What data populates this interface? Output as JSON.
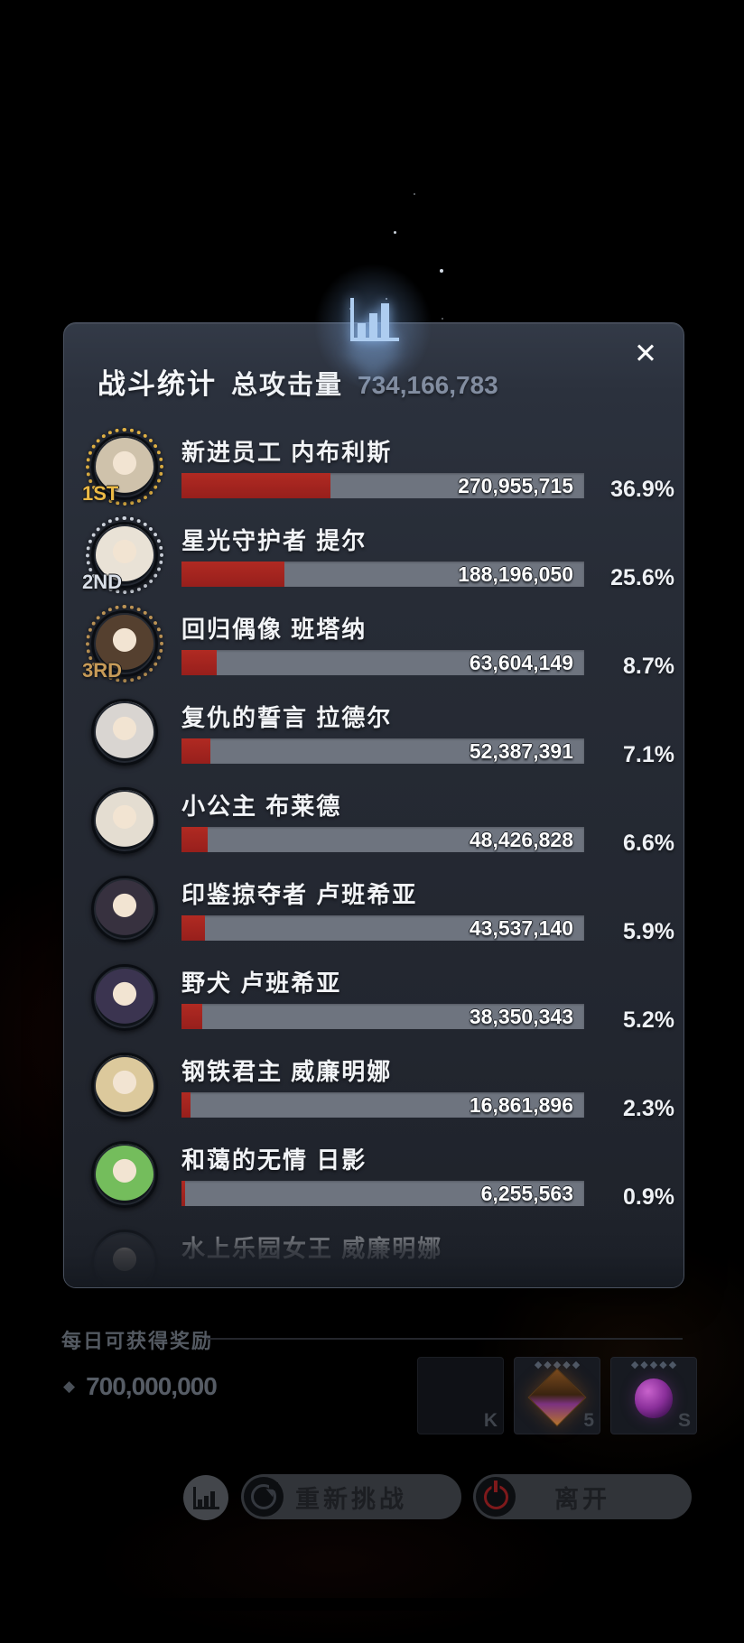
{
  "header": {
    "title": "战斗统计",
    "total_label": "总攻击量",
    "total_value": "734,166,783"
  },
  "close_icon": "✕",
  "icons": {
    "top_icon": "bar-chart-icon",
    "pip": "◆",
    "currency_diamond": "◆"
  },
  "colors": {
    "bar_fill": "#a5251f",
    "bar_track": "#6e747f",
    "accent_blue": "#aecdf0",
    "total_text": "#828da0",
    "rank_gold": "#ecba45",
    "rank_silver": "#d9dfe8",
    "rank_bronze": "#c79b58"
  },
  "panel": {
    "rows": [
      {
        "rank": "1ST",
        "rank_tier": "gold",
        "name": "新进员工 内布利斯",
        "value": "270,955,715",
        "percent": "36.9%",
        "percent_num": 36.9,
        "avatar_color": "#cfc2ab"
      },
      {
        "rank": "2ND",
        "rank_tier": "silver",
        "name": "星光守护者 提尔",
        "value": "188,196,050",
        "percent": "25.6%",
        "percent_num": 25.6,
        "avatar_color": "#e9e2d6"
      },
      {
        "rank": "3RD",
        "rank_tier": "bronze",
        "name": "回归偶像 班塔纳",
        "value": "63,604,149",
        "percent": "8.7%",
        "percent_num": 8.7,
        "avatar_color": "#55402f"
      },
      {
        "rank": null,
        "rank_tier": null,
        "name": "复仇的誓言 拉德尔",
        "value": "52,387,391",
        "percent": "7.1%",
        "percent_num": 7.1,
        "avatar_color": "#d9d5d1"
      },
      {
        "rank": null,
        "rank_tier": null,
        "name": "小公主 布莱德",
        "value": "48,426,828",
        "percent": "6.6%",
        "percent_num": 6.6,
        "avatar_color": "#e4ddd1"
      },
      {
        "rank": null,
        "rank_tier": null,
        "name": "印鉴掠夺者 卢班希亚",
        "value": "43,537,140",
        "percent": "5.9%",
        "percent_num": 5.9,
        "avatar_color": "#37313f"
      },
      {
        "rank": null,
        "rank_tier": null,
        "name": "野犬 卢班希亚",
        "value": "38,350,343",
        "percent": "5.2%",
        "percent_num": 5.2,
        "avatar_color": "#3b3450"
      },
      {
        "rank": null,
        "rank_tier": null,
        "name": "钢铁君主 威廉明娜",
        "value": "16,861,896",
        "percent": "2.3%",
        "percent_num": 2.3,
        "avatar_color": "#dcc99c"
      },
      {
        "rank": null,
        "rank_tier": null,
        "name": "和蔼的无情 日影",
        "value": "6,255,563",
        "percent": "0.9%",
        "percent_num": 0.9,
        "avatar_color": "#74bd5c"
      },
      {
        "rank": null,
        "rank_tier": null,
        "name": "水上乐园女王 威廉明娜",
        "value": null,
        "percent": null,
        "percent_num": null,
        "avatar_color": "#2e3138"
      }
    ]
  },
  "rewards": {
    "label": "每日可获得奖励",
    "amount": "700,000,000",
    "tiles": [
      {
        "corner": "K",
        "pips": 0,
        "item": null,
        "empty": true
      },
      {
        "corner": "5",
        "pips": 5,
        "item": "diamond",
        "empty": false
      },
      {
        "corner": "S",
        "pips": 5,
        "item": "orb",
        "empty": false
      }
    ]
  },
  "footer": {
    "stats_button": "bar-chart-icon",
    "retry_label": "重新挑战",
    "leave_label": "离开"
  }
}
